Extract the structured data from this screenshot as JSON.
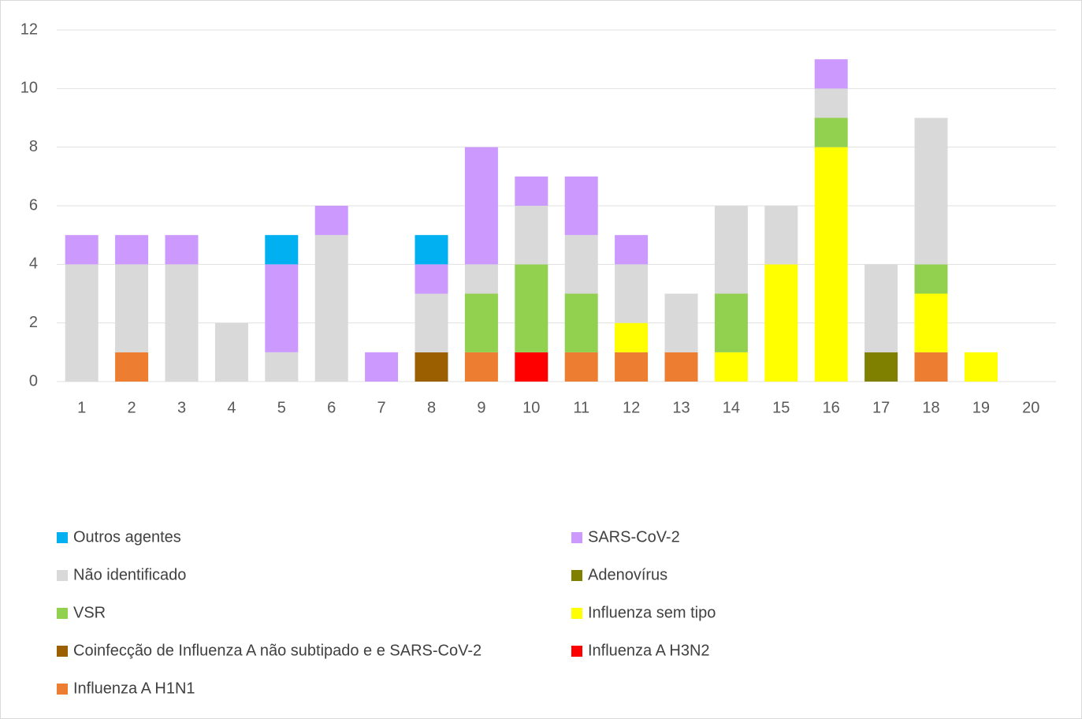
{
  "chart_data": {
    "type": "stacked_bar",
    "categories": [
      "1",
      "2",
      "3",
      "4",
      "5",
      "6",
      "7",
      "8",
      "9",
      "10",
      "11",
      "12",
      "13",
      "14",
      "15",
      "16",
      "17",
      "18",
      "19",
      "20"
    ],
    "ylim": [
      0,
      12
    ],
    "yticks": [
      0,
      2,
      4,
      6,
      8,
      10,
      12
    ],
    "grid": true,
    "series": [
      {
        "name": "Influenza A H1N1",
        "color": "#ed7d31",
        "values": [
          0,
          1,
          0,
          0,
          0,
          0,
          0,
          0,
          1,
          0,
          1,
          1,
          1,
          0,
          0,
          0,
          0,
          1,
          0,
          0
        ]
      },
      {
        "name": "Influenza A H3N2",
        "color": "#ff0000",
        "values": [
          0,
          0,
          0,
          0,
          0,
          0,
          0,
          0,
          0,
          1,
          0,
          0,
          0,
          0,
          0,
          0,
          0,
          0,
          0,
          0
        ]
      },
      {
        "name": "Coinfecção de Influenza A não subtipado e e SARS-CoV-2",
        "color": "#9c5f00",
        "values": [
          0,
          0,
          0,
          0,
          0,
          0,
          0,
          1,
          0,
          0,
          0,
          0,
          0,
          0,
          0,
          0,
          0,
          0,
          0,
          0
        ]
      },
      {
        "name": "Influenza sem tipo",
        "color": "#ffff00",
        "values": [
          0,
          0,
          0,
          0,
          0,
          0,
          0,
          0,
          0,
          0,
          0,
          1,
          0,
          1,
          4,
          8,
          0,
          2,
          1,
          0
        ]
      },
      {
        "name": "VSR",
        "color": "#92d050",
        "values": [
          0,
          0,
          0,
          0,
          0,
          0,
          0,
          0,
          2,
          3,
          2,
          0,
          0,
          2,
          0,
          1,
          0,
          1,
          0,
          0
        ]
      },
      {
        "name": "Adenovírus",
        "color": "#808000",
        "values": [
          0,
          0,
          0,
          0,
          0,
          0,
          0,
          0,
          0,
          0,
          0,
          0,
          0,
          0,
          0,
          0,
          1,
          0,
          0,
          0
        ]
      },
      {
        "name": "Não identificado",
        "color": "#d9d9d9",
        "values": [
          4,
          3,
          4,
          2,
          1,
          5,
          0,
          2,
          1,
          2,
          2,
          2,
          2,
          3,
          2,
          1,
          3,
          5,
          0,
          0
        ]
      },
      {
        "name": "SARS-CoV-2",
        "color": "#cc99ff",
        "values": [
          1,
          1,
          1,
          0,
          3,
          1,
          1,
          1,
          4,
          1,
          2,
          1,
          0,
          0,
          0,
          1,
          0,
          0,
          0,
          0
        ]
      },
      {
        "name": "Outros agentes",
        "color": "#00b0f0",
        "values": [
          0,
          0,
          0,
          0,
          1,
          0,
          0,
          1,
          0,
          0,
          0,
          0,
          0,
          0,
          0,
          0,
          0,
          0,
          0,
          0
        ]
      }
    ]
  }
}
